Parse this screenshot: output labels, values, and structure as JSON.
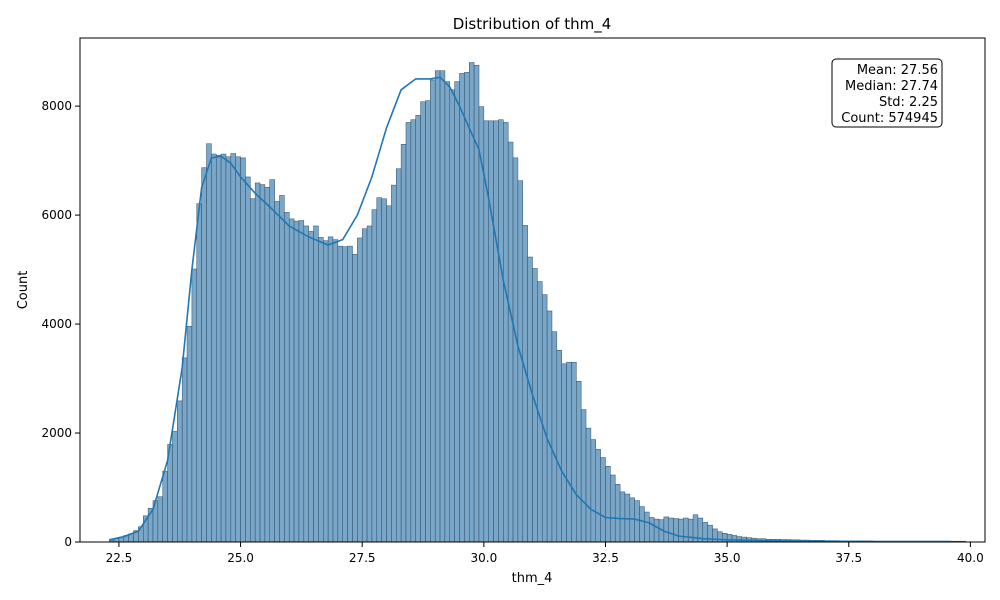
{
  "chart_data": {
    "type": "histogram",
    "title": "Distribution of thm_4",
    "xlabel": "thm_4",
    "ylabel": "Count",
    "xlim": [
      21.7,
      40.3
    ],
    "ylim": [
      0,
      9250
    ],
    "xticks": [
      22.5,
      25.0,
      27.5,
      30.0,
      32.5,
      35.0,
      37.5,
      40.0
    ],
    "xtick_labels": [
      "22.5",
      "25.0",
      "27.5",
      "30.0",
      "32.5",
      "35.0",
      "37.5",
      "40.0"
    ],
    "yticks": [
      0,
      2000,
      4000,
      6000,
      8000
    ],
    "ytick_labels": [
      "0",
      "2000",
      "4000",
      "6000",
      "8000"
    ],
    "bin_start": 22.3,
    "bin_width": 0.1,
    "counts": [
      30,
      60,
      90,
      120,
      150,
      210,
      280,
      480,
      620,
      760,
      830,
      1300,
      1790,
      2030,
      2590,
      3380,
      3960,
      5010,
      6210,
      6870,
      7310,
      7120,
      7100,
      7120,
      7070,
      7130,
      7070,
      7050,
      6700,
      6300,
      6590,
      6560,
      6510,
      6650,
      6250,
      6360,
      6050,
      5930,
      5890,
      5900,
      5800,
      5700,
      5800,
      5590,
      5530,
      5600,
      5550,
      5430,
      5420,
      5430,
      5280,
      5580,
      5750,
      5800,
      6100,
      6320,
      6300,
      6170,
      6550,
      6850,
      7300,
      7700,
      7750,
      7830,
      8080,
      8100,
      8480,
      8650,
      8650,
      8450,
      8300,
      8450,
      8600,
      8620,
      8800,
      8750,
      7990,
      7730,
      7730,
      7730,
      7750,
      7700,
      7340,
      7050,
      6630,
      5810,
      5230,
      5020,
      4780,
      4540,
      4240,
      3860,
      3520,
      3270,
      3300,
      3300,
      2950,
      2430,
      2090,
      1880,
      1700,
      1550,
      1390,
      1230,
      1060,
      920,
      880,
      810,
      760,
      650,
      550,
      450,
      420,
      410,
      460,
      440,
      430,
      420,
      440,
      420,
      500,
      440,
      360,
      310,
      240,
      190,
      160,
      140,
      120,
      100,
      90,
      80,
      70,
      60,
      60,
      50,
      50,
      50,
      45,
      45,
      40,
      40,
      35,
      35,
      30,
      30,
      30,
      25,
      25,
      25,
      20,
      20,
      20,
      20,
      20,
      20,
      20,
      15,
      15,
      15,
      15,
      15,
      15,
      15,
      15,
      15,
      15,
      15,
      15,
      15,
      15,
      15,
      15,
      15,
      15,
      15
    ],
    "kde": {
      "x": [
        22.3,
        22.6,
        22.9,
        23.2,
        23.5,
        23.8,
        24.0,
        24.2,
        24.4,
        24.6,
        24.8,
        25.0,
        25.3,
        25.6,
        26.0,
        26.4,
        26.8,
        27.1,
        27.4,
        27.7,
        28.0,
        28.3,
        28.6,
        28.9,
        29.1,
        29.3,
        29.5,
        29.7,
        29.9,
        30.1,
        30.4,
        30.7,
        31.0,
        31.3,
        31.6,
        31.9,
        32.2,
        32.5,
        32.8,
        33.1,
        33.4,
        33.7,
        34.0,
        34.5,
        35.0,
        36.0,
        37.0,
        38.0,
        39.0,
        39.6
      ],
      "y": [
        40,
        100,
        200,
        600,
        1500,
        3200,
        5000,
        6500,
        7050,
        7080,
        6950,
        6700,
        6400,
        6150,
        5800,
        5600,
        5450,
        5550,
        6000,
        6700,
        7600,
        8300,
        8500,
        8500,
        8530,
        8350,
        8000,
        7600,
        7200,
        6300,
        4800,
        3600,
        2700,
        1900,
        1300,
        870,
        600,
        450,
        430,
        420,
        350,
        200,
        110,
        60,
        40,
        20,
        15,
        10,
        10,
        10
      ]
    },
    "stats": {
      "mean": "Mean: 27.56",
      "median": "Median: 27.74",
      "std": "Std: 2.25",
      "count": "Count: 574945"
    },
    "bar_color": "#7aa6c8",
    "bar_edge": "#2d4d66",
    "line_color": "#1f77b4",
    "grid": false,
    "legend": "none"
  }
}
